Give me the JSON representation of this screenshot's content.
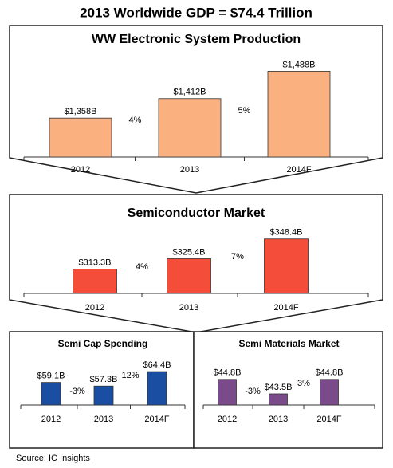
{
  "title": "2013 Worldwide GDP = $74.4 Trillion",
  "source": "Source:  IC Insights",
  "chart_data": [
    {
      "type": "bar",
      "title": "WW Electronic System Production",
      "categories": [
        "2012",
        "2013",
        "2014F"
      ],
      "values": [
        1358,
        1412,
        1488
      ],
      "value_labels": [
        "$1,358B",
        "$1,412B",
        "$1,488B"
      ],
      "annotations": [
        "4%",
        "5%"
      ],
      "color": "#fbb07f",
      "ylim": [
        1250,
        1500
      ]
    },
    {
      "type": "bar",
      "title": "Semiconductor Market",
      "categories": [
        "2012",
        "2013",
        "2014F"
      ],
      "values": [
        313.3,
        325.4,
        348.4
      ],
      "value_labels": [
        "$313.3B",
        "$325.4B",
        "$348.4B"
      ],
      "annotations": [
        "4%",
        "7%"
      ],
      "color": "#f44d3a",
      "ylim": [
        285,
        350
      ]
    },
    {
      "type": "bar",
      "title": "Semi Cap Spending",
      "categories": [
        "2012",
        "2013",
        "2014F"
      ],
      "values": [
        59.1,
        57.3,
        64.4
      ],
      "value_labels": [
        "$59.1B",
        "$57.3B",
        "$64.4B"
      ],
      "annotations": [
        "-3%",
        "12%"
      ],
      "color": "#1a4ea3",
      "ylim": [
        48,
        66
      ]
    },
    {
      "type": "bar",
      "title": "Semi Materials Market",
      "categories": [
        "2012",
        "2013",
        "2014F"
      ],
      "values": [
        44.8,
        43.5,
        44.8
      ],
      "value_labels": [
        "$44.8B",
        "$43.5B",
        "$44.8B"
      ],
      "annotations": [
        "-3%",
        "3%"
      ],
      "color": "#7b4a8a",
      "ylim": [
        42.5,
        45
      ]
    }
  ]
}
